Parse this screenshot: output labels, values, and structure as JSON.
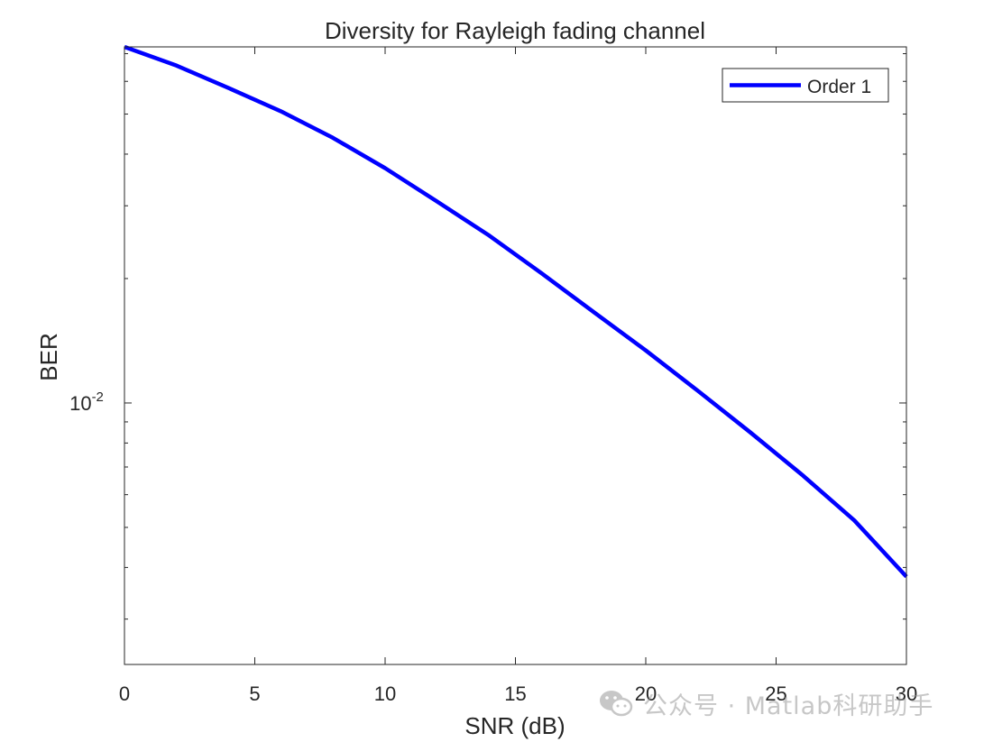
{
  "chart_data": {
    "type": "line",
    "title": "Diversity for Rayleigh fading channel",
    "xlabel": "SNR (dB)",
    "ylabel": "BER",
    "xlim": [
      0,
      30
    ],
    "ylim": [
      0.00233,
      0.0727
    ],
    "yscale": "log",
    "grid": false,
    "legend_position": "top-right",
    "xticks": [
      0,
      5,
      10,
      15,
      20,
      25,
      30
    ],
    "xtick_labels": [
      "0",
      "5",
      "10",
      "15",
      "20",
      "25",
      "30"
    ],
    "ytick_major": [
      0.01
    ],
    "ytick_major_labels": [
      {
        "base": "10",
        "exp": "-2"
      }
    ],
    "ytick_minor": [
      0.003,
      0.004,
      0.005,
      0.006,
      0.007,
      0.008,
      0.009,
      0.02,
      0.03,
      0.04,
      0.05,
      0.06,
      0.07
    ],
    "x": [
      0,
      2,
      4,
      6,
      8,
      10,
      12,
      14,
      16,
      18,
      20,
      22,
      24,
      26,
      28,
      30
    ],
    "series": [
      {
        "name": "Order 1",
        "color": "#0000ff",
        "values": [
          0.0727,
          0.0655,
          0.0578,
          0.0508,
          0.0438,
          0.037,
          0.0307,
          0.0254,
          0.0206,
          0.0166,
          0.0134,
          0.0107,
          0.0085,
          0.0067,
          0.0052,
          0.0038
        ]
      }
    ]
  },
  "watermark": {
    "text": "公众号 · Matlab科研助手",
    "icon": "wechat-icon"
  }
}
